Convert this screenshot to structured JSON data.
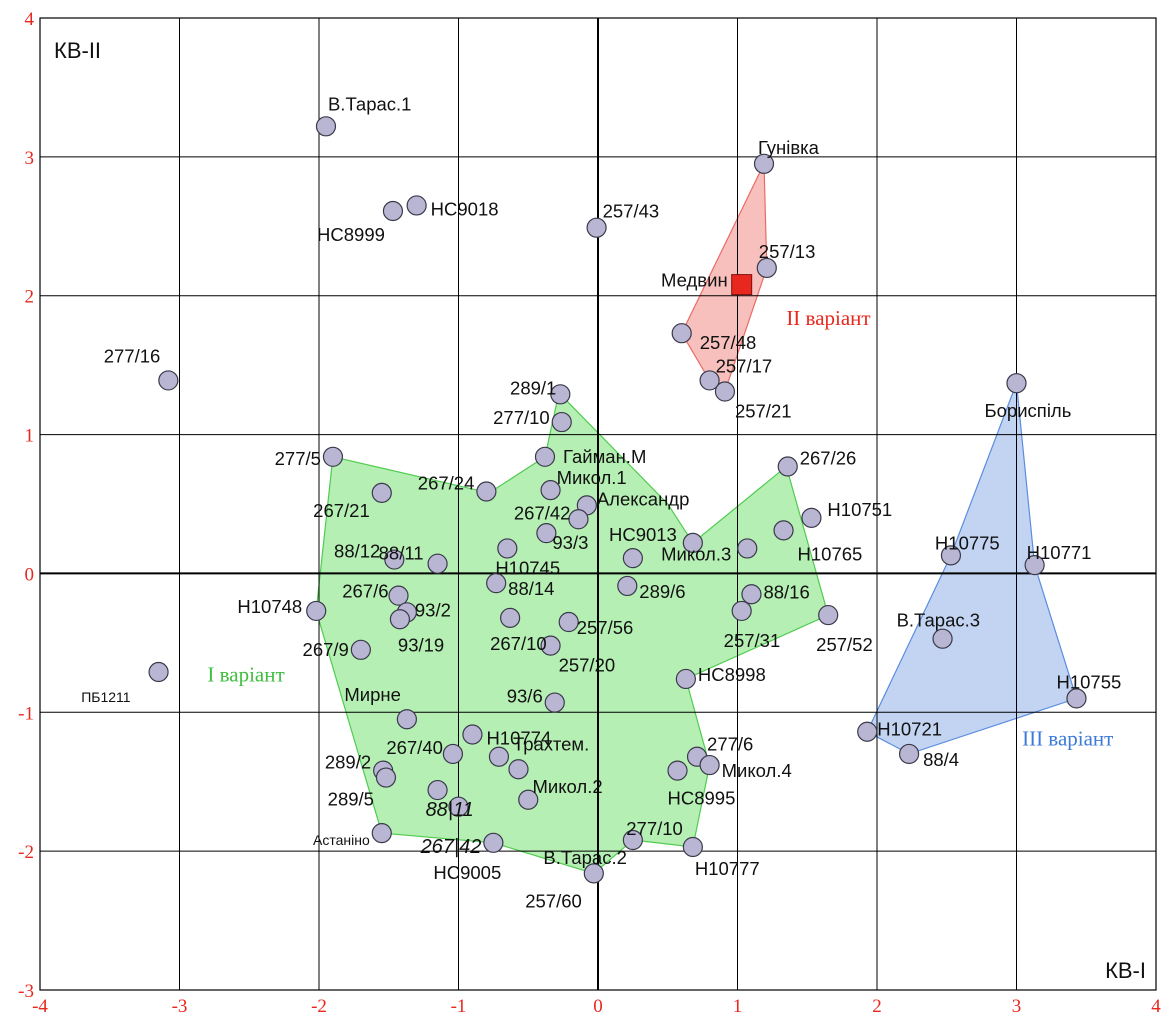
{
  "chart_data": {
    "type": "scatter",
    "xlim": [
      -4,
      4
    ],
    "ylim": [
      -3,
      4
    ],
    "grid": true,
    "x_ticks": [
      "-4",
      "-3",
      "-2",
      "-1",
      "0",
      "1",
      "2",
      "3",
      "4"
    ],
    "y_ticks": [
      "-3",
      "-2",
      "-1",
      "0",
      "1",
      "2",
      "3",
      "4"
    ],
    "quadrant_labels": [
      "КВ-II",
      "КВ-I"
    ],
    "tick_color": "#e8281e",
    "groups": [
      {
        "name": "I варіант",
        "fill": "#a9eca7",
        "stroke": "#4fcc4f",
        "label_color": "#3fbf3f",
        "polygon": [
          [
            -1.9,
            0.84
          ],
          [
            -2.02,
            -0.27
          ],
          [
            -1.55,
            -1.87
          ],
          [
            -0.75,
            -1.94
          ],
          [
            -0.03,
            -2.16
          ],
          [
            0.25,
            -1.92
          ],
          [
            0.68,
            -1.97
          ],
          [
            0.8,
            -1.38
          ],
          [
            0.63,
            -0.76
          ],
          [
            1.65,
            -0.3
          ],
          [
            1.35,
            0.77
          ],
          [
            0.68,
            0.22
          ],
          [
            0.5,
            0.5
          ],
          [
            -0.28,
            1.3
          ],
          [
            -0.38,
            0.84
          ],
          [
            -0.78,
            0.58
          ]
        ]
      },
      {
        "name": "II варіант",
        "fill": "#f6b5b2",
        "stroke": "#ec6a66",
        "label_color": "#e8281e",
        "polygon": [
          [
            1.19,
            2.95
          ],
          [
            1.21,
            2.2
          ],
          [
            0.91,
            1.31
          ],
          [
            0.8,
            1.39
          ],
          [
            0.6,
            1.73
          ]
        ]
      },
      {
        "name": "III варіант",
        "fill": "#b7ccf0",
        "stroke": "#5b8de0",
        "label_color": "#3b7ad8",
        "polygon": [
          [
            3.0,
            1.37
          ],
          [
            3.13,
            0.06
          ],
          [
            3.43,
            -0.9
          ],
          [
            2.23,
            -1.3
          ],
          [
            1.93,
            -1.14
          ],
          [
            2.53,
            0.13
          ]
        ]
      }
    ],
    "points": [
      {
        "label": "В.Тарас.1",
        "x": -1.95,
        "y": 3.22
      },
      {
        "label": "НС9018",
        "x": -1.3,
        "y": 2.65
      },
      {
        "label": "НС8999",
        "x": -1.47,
        "y": 2.61
      },
      {
        "label": "257/43",
        "x": -0.01,
        "y": 2.49
      },
      {
        "label": "Гунівка",
        "x": 1.19,
        "y": 2.95
      },
      {
        "label": "257/13",
        "x": 1.21,
        "y": 2.2
      },
      {
        "label": "257/48",
        "x": 0.6,
        "y": 1.73
      },
      {
        "label": "257/17",
        "x": 0.8,
        "y": 1.39
      },
      {
        "label": "257/21",
        "x": 0.91,
        "y": 1.31
      },
      {
        "label": "277/16",
        "x": -3.08,
        "y": 1.39
      },
      {
        "label": "289/1",
        "x": -0.27,
        "y": 1.29
      },
      {
        "label": "277/10",
        "x": -0.26,
        "y": 1.09
      },
      {
        "label": "277/5",
        "x": -1.9,
        "y": 0.84
      },
      {
        "label": "Гайман.М",
        "x": -0.38,
        "y": 0.84
      },
      {
        "label": "267/24",
        "x": -0.8,
        "y": 0.59
      },
      {
        "label": "Микол.1",
        "x": -0.34,
        "y": 0.6
      },
      {
        "label": "267/21",
        "x": -1.55,
        "y": 0.58
      },
      {
        "label": "Александр",
        "x": -0.08,
        "y": 0.49
      },
      {
        "label": "267/42",
        "x": -0.14,
        "y": 0.39
      },
      {
        "label": "93/3",
        "x": -0.37,
        "y": 0.29
      },
      {
        "label": "НС9013",
        "x": 0.68,
        "y": 0.22
      },
      {
        "label": "267/26",
        "x": 1.36,
        "y": 0.77
      },
      {
        "label": "Н10751",
        "x": 1.53,
        "y": 0.4
      },
      {
        "label": "Н10765",
        "x": 1.33,
        "y": 0.31
      },
      {
        "label": "Микол.3",
        "x": 1.07,
        "y": 0.18
      },
      {
        "label": "88/12",
        "x": -1.46,
        "y": 0.1
      },
      {
        "label": "88/11",
        "x": -1.15,
        "y": 0.07
      },
      {
        "label": "Н10745",
        "x": -0.65,
        "y": 0.18
      },
      {
        "label": "",
        "x": 0.25,
        "y": 0.11
      },
      {
        "label": "88/14",
        "x": -0.73,
        "y": -0.07
      },
      {
        "label": "289/6",
        "x": 0.21,
        "y": -0.09
      },
      {
        "label": "88/16",
        "x": 1.1,
        "y": -0.15
      },
      {
        "label": "Н10775",
        "x": 2.53,
        "y": 0.13
      },
      {
        "label": "Н10771",
        "x": 3.13,
        "y": 0.06
      },
      {
        "label": "Бориспіль",
        "x": 3.0,
        "y": 1.37
      },
      {
        "label": "267/6",
        "x": -1.43,
        "y": -0.16
      },
      {
        "label": "93/2",
        "x": -1.37,
        "y": -0.28
      },
      {
        "label": "93/19",
        "x": -1.42,
        "y": -0.33
      },
      {
        "label": "Н10748",
        "x": -2.02,
        "y": -0.27
      },
      {
        "label": "267/10",
        "x": -0.63,
        "y": -0.32
      },
      {
        "label": "257/56",
        "x": -0.21,
        "y": -0.35
      },
      {
        "label": "257/31",
        "x": 1.03,
        "y": -0.27
      },
      {
        "label": "257/52",
        "x": 1.65,
        "y": -0.3
      },
      {
        "label": "В.Тарас.3",
        "x": 2.47,
        "y": -0.47
      },
      {
        "label": "267/9",
        "x": -1.7,
        "y": -0.55
      },
      {
        "label": "257/20",
        "x": -0.34,
        "y": -0.52
      },
      {
        "label": "НС8998",
        "x": 0.63,
        "y": -0.76
      },
      {
        "label": "ПБ1211",
        "x": -3.15,
        "y": -0.71,
        "small": true
      },
      {
        "label": "Н10755",
        "x": 3.43,
        "y": -0.9
      },
      {
        "label": "Мирне",
        "x": -1.37,
        "y": -1.05
      },
      {
        "label": "93/6",
        "x": -0.31,
        "y": -0.93
      },
      {
        "label": "Н10774",
        "x": -0.9,
        "y": -1.16
      },
      {
        "label": "Н10721",
        "x": 1.93,
        "y": -1.14
      },
      {
        "label": "88/4",
        "x": 2.23,
        "y": -1.3
      },
      {
        "label": "267/40",
        "x": -1.04,
        "y": -1.3
      },
      {
        "label": "Трахтем.",
        "x": -0.71,
        "y": -1.32
      },
      {
        "label": "277/6",
        "x": 0.71,
        "y": -1.32
      },
      {
        "label": "Микол.2",
        "x": -0.57,
        "y": -1.41
      },
      {
        "label": "Микол.4",
        "x": 0.8,
        "y": -1.38
      },
      {
        "label": "НС8995",
        "x": 0.57,
        "y": -1.42
      },
      {
        "label": "289/2",
        "x": -1.54,
        "y": -1.42
      },
      {
        "label": "289/5",
        "x": -1.52,
        "y": -1.47
      },
      {
        "label": "88|11",
        "x": -1.15,
        "y": -1.56,
        "italic": true
      },
      {
        "label": "",
        "x": -1.0,
        "y": -1.68
      },
      {
        "label": "",
        "x": -0.5,
        "y": -1.63
      },
      {
        "label": "267|42",
        "x": -0.75,
        "y": -1.94,
        "italic": true
      },
      {
        "label": "Астаніно",
        "x": -1.55,
        "y": -1.87,
        "small": true
      },
      {
        "label": "В.Тарас.2",
        "x": 0.25,
        "y": -1.92
      },
      {
        "label": "277/10",
        "x": 0.68,
        "y": -1.97
      },
      {
        "label": "НС9005",
        "x": -0.75,
        "y": -1.94,
        "hidden_marker": true
      },
      {
        "label": "Н10777",
        "x": 0.68,
        "y": -1.97,
        "hidden_marker": true
      },
      {
        "label": "257/60",
        "x": -0.03,
        "y": -2.16
      }
    ],
    "reference_point": {
      "label": "Медвин",
      "x": 1.03,
      "y": 2.08,
      "color": "#e8281e"
    },
    "marker_fill": "#b9b6d3",
    "marker_stroke": "#3a3a4a"
  }
}
